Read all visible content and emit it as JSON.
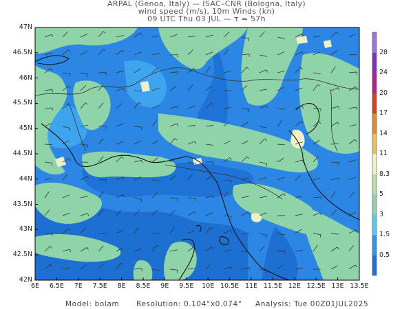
{
  "header": {
    "line1": "ARPAL (Genoa, Italy)  —  ISAC–CNR (Bologna, Italy)",
    "line2": "wind speed (m/s), 10m Winds (kn)",
    "line3": "09 UTC Thu 03 JUL  —  τ = 57h"
  },
  "map": {
    "lat_labels": [
      "47N",
      "46.5N",
      "46N",
      "45.5N",
      "45N",
      "44.5N",
      "44N",
      "43.5N",
      "43N",
      "42.5N",
      "42N"
    ],
    "lon_labels": [
      "6E",
      "6.5E",
      "7E",
      "7.5E",
      "8E",
      "8.5E",
      "9E",
      "9.5E",
      "10E",
      "10.5E",
      "11E",
      "11.5E",
      "12E",
      "12.5E",
      "13E",
      "13.5E"
    ],
    "lat_range": [
      42,
      47
    ],
    "lon_range": [
      6,
      13.5
    ],
    "wind_direction": "northerly-northeasterly light winds"
  },
  "colorbar": {
    "labels": [
      "0.5",
      "1.5",
      "3",
      "5",
      "8.3",
      "11",
      "14",
      "17",
      "20",
      "24",
      "28"
    ],
    "colors": [
      "#1a74d8",
      "#2b96ec",
      "#58c9f2",
      "#8fd3a8",
      "#b5e0a6",
      "#f0f0c8",
      "#e8c060",
      "#e08a30",
      "#d04520",
      "#b02090",
      "#8030c0",
      "#a070e0"
    ]
  },
  "footer": {
    "model": "Model: bolam",
    "resolution": "Resolution: 0.104°x0.074°",
    "analysis": "Analysis: Tue 00Z01JUL2025"
  }
}
